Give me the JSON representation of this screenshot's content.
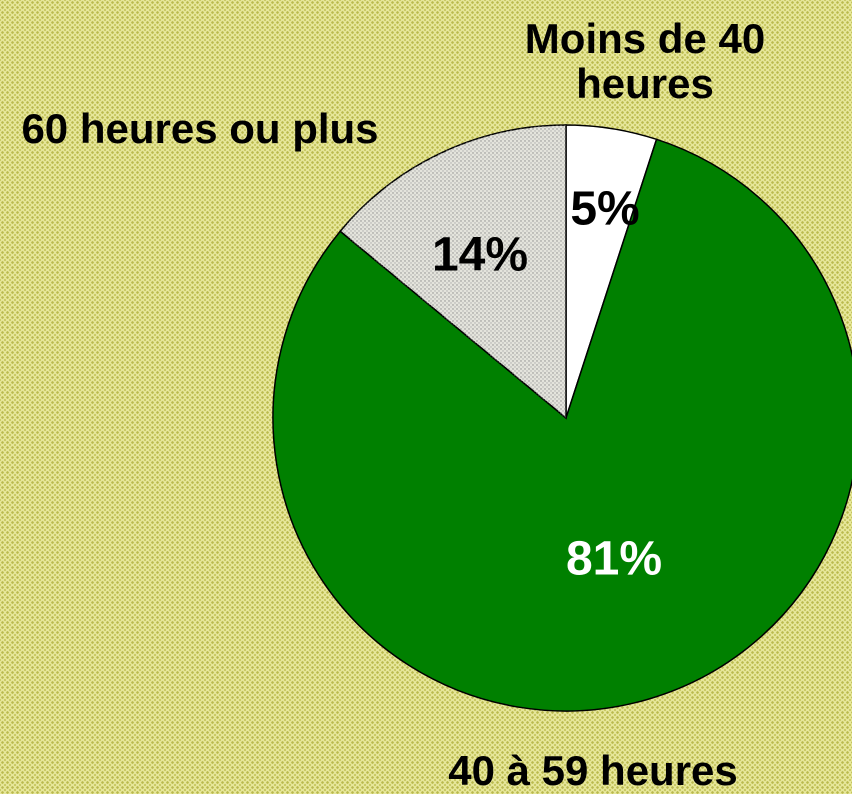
{
  "chart_data": {
    "type": "pie",
    "categories": [
      "Moins de 40 heures",
      "40 à 59 heures",
      "60 heures ou plus"
    ],
    "values": [
      5,
      81,
      14
    ],
    "value_labels": [
      "5%",
      "81%",
      "14%"
    ],
    "colors": [
      "#ffffff",
      "#008000",
      "#e4e4dc"
    ]
  }
}
